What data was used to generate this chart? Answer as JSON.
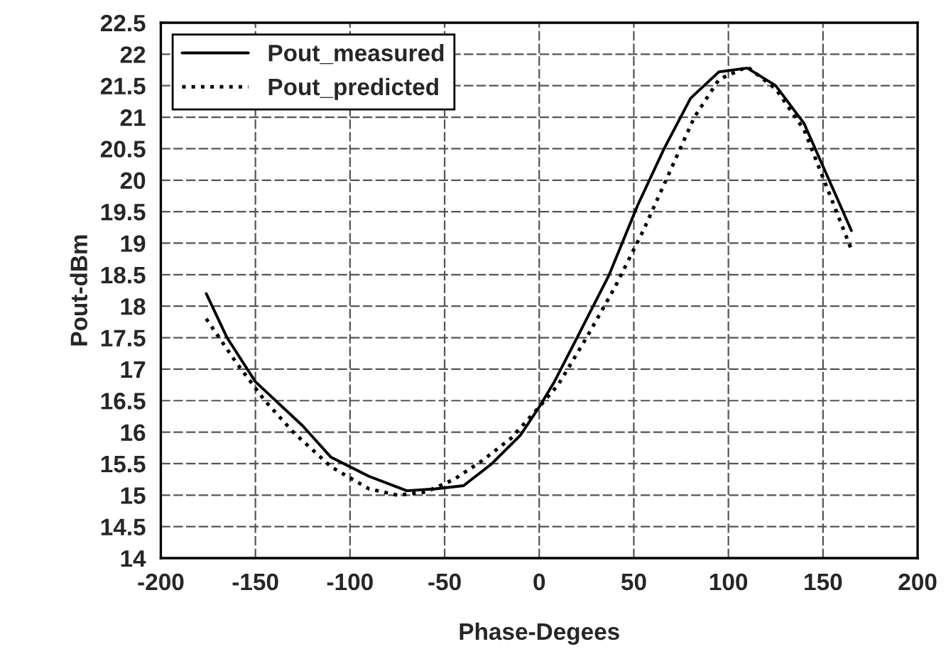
{
  "chart_data": {
    "type": "line",
    "xlabel": "Phase-Degees",
    "ylabel": "Pout-dBm",
    "xlim": [
      -200,
      200
    ],
    "xticks": [
      -200,
      -150,
      -100,
      -50,
      0,
      50,
      100,
      150,
      200
    ],
    "ylim": [
      14,
      22.5
    ],
    "yticks": [
      14,
      14.5,
      15,
      15.5,
      16,
      16.5,
      17,
      17.5,
      18,
      18.5,
      19,
      19.5,
      20,
      20.5,
      21,
      21.5,
      22,
      22.5
    ],
    "grid": true,
    "legend": "top left",
    "marker": "none",
    "series": [
      {
        "name": "Pout_measured",
        "color": "#000000",
        "line_style": "solid",
        "x": [
          -176,
          -165,
          -150,
          -125,
          -110,
          -90,
          -70,
          -55,
          -40,
          -25,
          -10,
          0,
          8,
          20,
          37,
          52,
          66,
          80,
          95,
          110,
          125,
          140,
          165
        ],
        "values": [
          18.2,
          17.5,
          16.8,
          16.1,
          15.6,
          15.3,
          15.07,
          15.1,
          15.15,
          15.5,
          15.95,
          16.4,
          16.8,
          17.5,
          18.5,
          19.6,
          20.5,
          21.3,
          21.72,
          21.78,
          21.5,
          20.9,
          19.2
        ]
      },
      {
        "name": "Pout_predicted",
        "color": "#000000",
        "line_style": "dotted",
        "x": [
          -176,
          -160,
          -145,
          -130,
          -110,
          -90,
          -75,
          -60,
          -45,
          -30,
          -15,
          0,
          10,
          25,
          40,
          55,
          70,
          82,
          95,
          110,
          125,
          140,
          165
        ],
        "values": [
          17.8,
          17.1,
          16.5,
          16.0,
          15.45,
          15.1,
          15.0,
          15.05,
          15.25,
          15.55,
          15.9,
          16.4,
          16.75,
          17.5,
          18.3,
          19.2,
          20.2,
          21.0,
          21.6,
          21.8,
          21.45,
          20.8,
          18.9
        ]
      }
    ]
  }
}
